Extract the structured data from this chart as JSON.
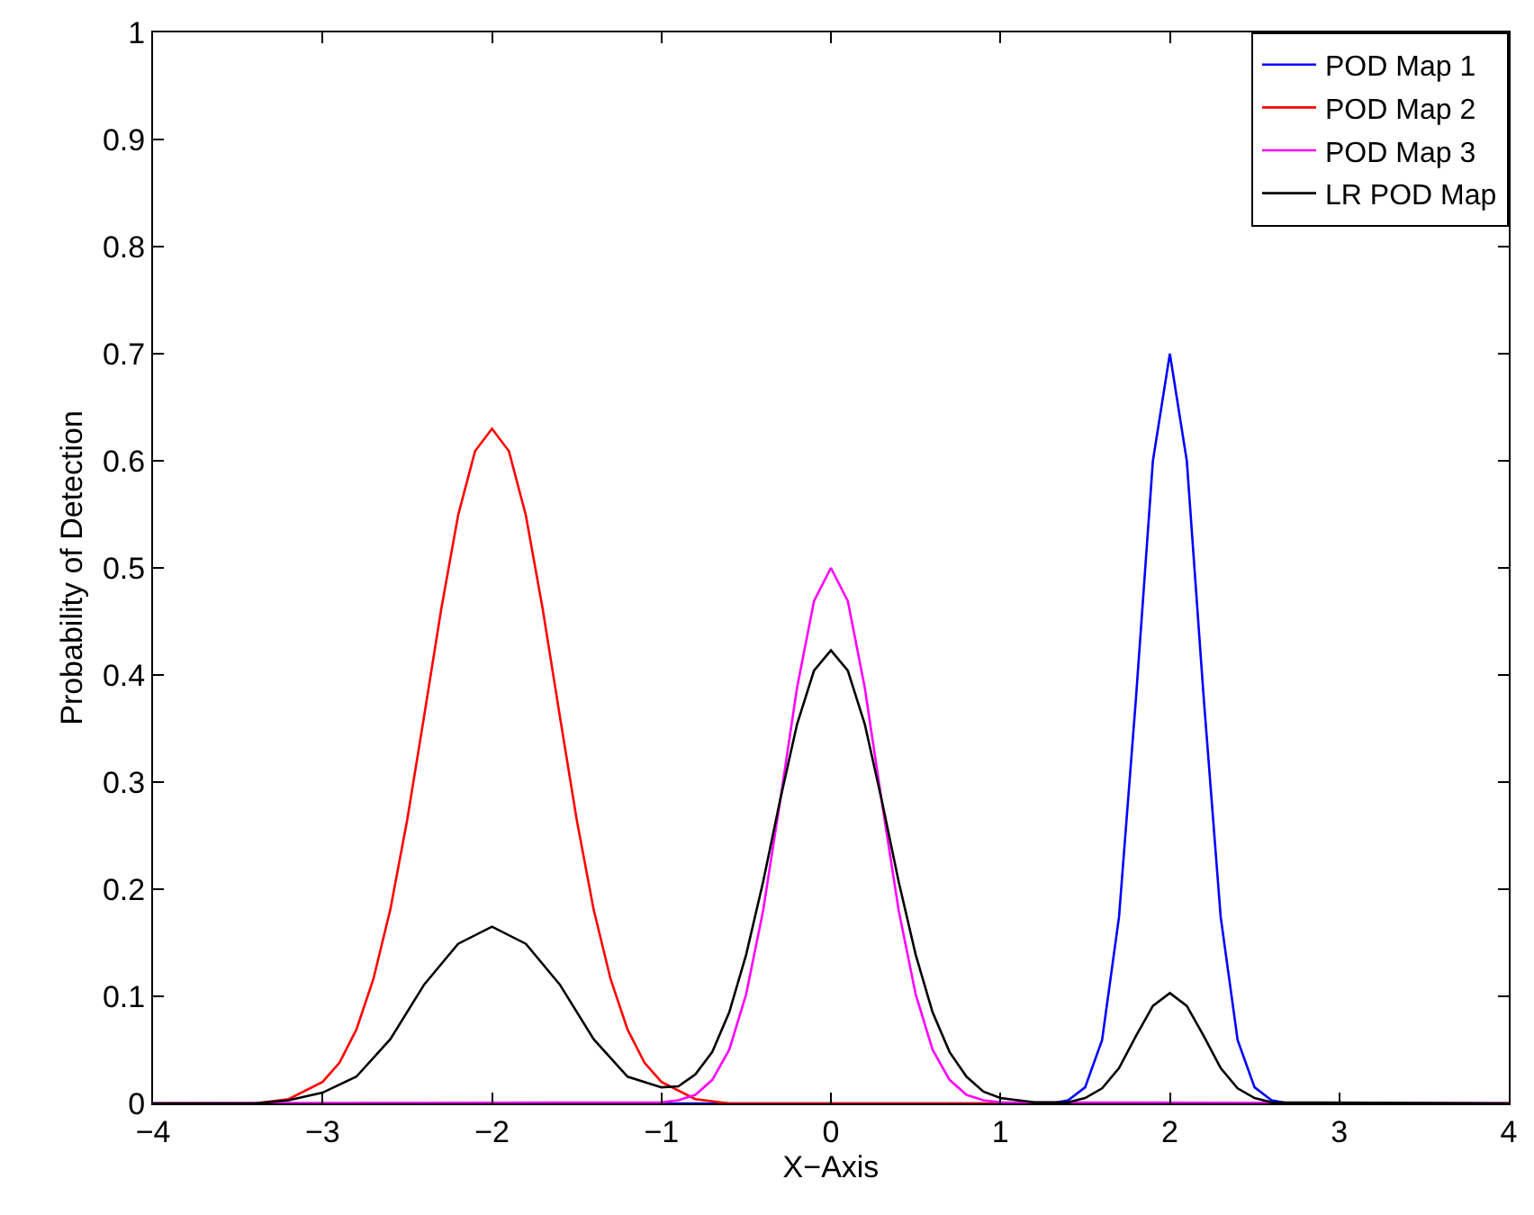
{
  "chart_data": {
    "type": "line",
    "xlabel": "X−Axis",
    "ylabel": "Probability of Detection",
    "xlim": [
      -4,
      4
    ],
    "xticks": [
      -4,
      -3,
      -2,
      -1,
      0,
      1,
      2,
      3,
      4
    ],
    "ylim": [
      0,
      1
    ],
    "yticks": [
      0,
      0.1,
      0.2,
      0.3,
      0.4,
      0.5,
      0.6,
      0.7,
      0.8,
      0.9,
      1
    ],
    "legend": "top right",
    "marker": "none",
    "line_style": "solid",
    "series": [
      {
        "name": "POD Map 1",
        "color": "#0000ff",
        "x": [
          -4,
          1.3,
          1.4,
          1.5,
          1.6,
          1.7,
          1.8,
          1.9,
          2.0,
          2.1,
          2.2,
          2.3,
          2.4,
          2.5,
          2.6,
          2.7,
          4
        ],
        "values": [
          0,
          0,
          0.003,
          0.015,
          0.059,
          0.174,
          0.378,
          0.6,
          0.7,
          0.6,
          0.378,
          0.174,
          0.059,
          0.015,
          0.003,
          0,
          0
        ]
      },
      {
        "name": "POD Map 2",
        "color": "#ff0000",
        "x": [
          -4,
          -3.4,
          -3.2,
          -3.0,
          -2.9,
          -2.8,
          -2.7,
          -2.6,
          -2.5,
          -2.4,
          -2.3,
          -2.2,
          -2.1,
          -2.0,
          -1.9,
          -1.8,
          -1.7,
          -1.6,
          -1.5,
          -1.4,
          -1.3,
          -1.2,
          -1.1,
          -1.0,
          -0.8,
          -0.6,
          4
        ],
        "values": [
          0,
          0,
          0.004,
          0.02,
          0.038,
          0.069,
          0.116,
          0.181,
          0.265,
          0.362,
          0.461,
          0.549,
          0.609,
          0.63,
          0.609,
          0.549,
          0.461,
          0.362,
          0.265,
          0.181,
          0.116,
          0.069,
          0.038,
          0.02,
          0.004,
          0,
          0
        ]
      },
      {
        "name": "POD Map 3",
        "color": "#ff00ff",
        "x": [
          -4,
          -1.0,
          -0.9,
          -0.8,
          -0.7,
          -0.6,
          -0.5,
          -0.4,
          -0.3,
          -0.2,
          -0.1,
          0,
          0.1,
          0.2,
          0.3,
          0.4,
          0.5,
          0.6,
          0.7,
          0.8,
          0.9,
          1.0,
          4
        ],
        "values": [
          0,
          0.001,
          0.003,
          0.008,
          0.022,
          0.05,
          0.102,
          0.18,
          0.282,
          0.388,
          0.469,
          0.5,
          0.469,
          0.388,
          0.282,
          0.18,
          0.102,
          0.05,
          0.022,
          0.008,
          0.003,
          0.001,
          0
        ]
      },
      {
        "name": "LR POD Map",
        "color": "#000000",
        "x": [
          -4,
          -3.4,
          -3.2,
          -3.0,
          -2.8,
          -2.6,
          -2.4,
          -2.2,
          -2.0,
          -1.8,
          -1.6,
          -1.4,
          -1.2,
          -1.0,
          -0.9,
          -0.8,
          -0.7,
          -0.6,
          -0.5,
          -0.4,
          -0.3,
          -0.2,
          -0.1,
          0,
          0.1,
          0.2,
          0.3,
          0.4,
          0.5,
          0.6,
          0.7,
          0.8,
          0.9,
          1.0,
          1.2,
          1.4,
          1.5,
          1.6,
          1.7,
          1.8,
          1.9,
          2.0,
          2.1,
          2.2,
          2.3,
          2.4,
          2.5,
          2.6,
          4
        ],
        "values": [
          0,
          0,
          0.003,
          0.01,
          0.025,
          0.06,
          0.111,
          0.149,
          0.165,
          0.149,
          0.111,
          0.06,
          0.025,
          0.015,
          0.016,
          0.027,
          0.048,
          0.085,
          0.139,
          0.207,
          0.283,
          0.354,
          0.404,
          0.423,
          0.404,
          0.354,
          0.283,
          0.207,
          0.139,
          0.085,
          0.048,
          0.025,
          0.011,
          0.005,
          0.001,
          0.001,
          0.005,
          0.014,
          0.033,
          0.063,
          0.091,
          0.103,
          0.091,
          0.063,
          0.033,
          0.014,
          0.005,
          0.001,
          0
        ]
      }
    ]
  }
}
